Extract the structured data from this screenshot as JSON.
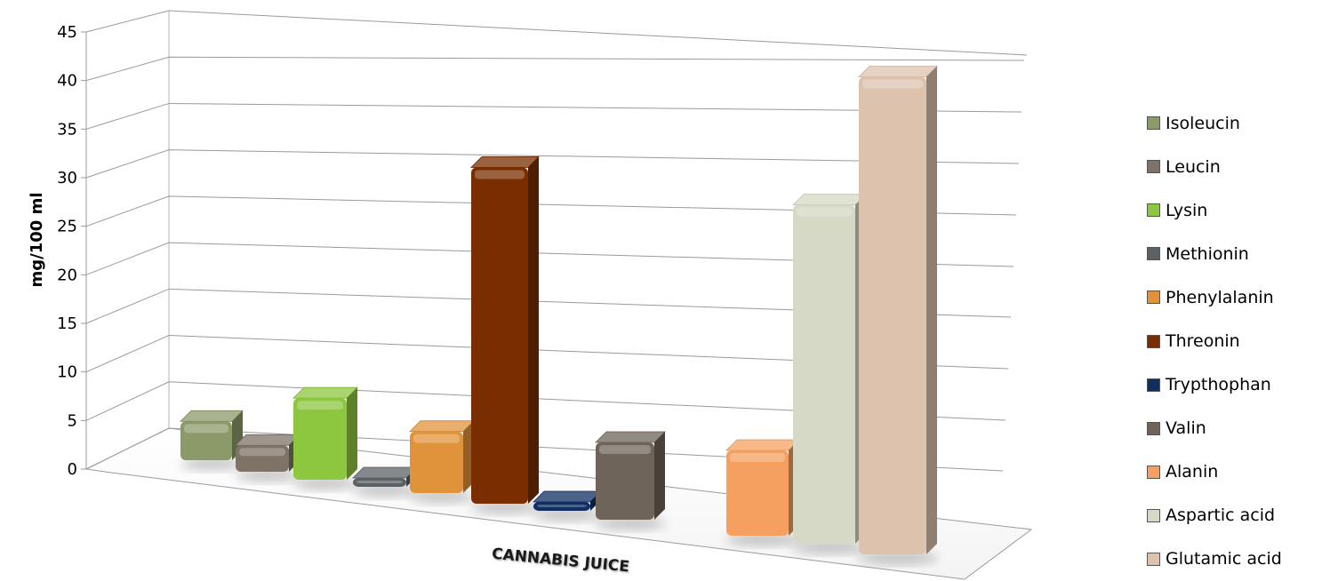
{
  "chart_data": {
    "type": "bar",
    "title": "",
    "xlabel": "",
    "ylabel": "mg/100 ml",
    "ylim": [
      0,
      45
    ],
    "yticks": [
      0,
      5,
      10,
      15,
      20,
      25,
      30,
      35,
      40,
      45
    ],
    "categories": [
      "CANNABIS JUICE"
    ],
    "grid": true,
    "legend_position": "right",
    "series": [
      {
        "name": "Isoleucin",
        "values": [
          4.2
        ],
        "color": "#8C9A6A"
      },
      {
        "name": "Leucin",
        "values": [
          2.8
        ],
        "color": "#7E7366"
      },
      {
        "name": "Lysin",
        "values": [
          8.5
        ],
        "color": "#8DC63F"
      },
      {
        "name": "Methionin",
        "values": [
          0.4
        ],
        "color": "#5C6166"
      },
      {
        "name": "Phenylalanin",
        "values": [
          6.3
        ],
        "color": "#E0933A"
      },
      {
        "name": "Threonin",
        "values": [
          33.5
        ],
        "color": "#7A2E00"
      },
      {
        "name": "Trypthophan",
        "values": [
          0.6
        ],
        "color": "#0F2E63"
      },
      {
        "name": "Valin",
        "values": [
          7.5
        ],
        "color": "#6E6459"
      },
      {
        "name": "Alanin",
        "values": [
          8.0
        ],
        "color": "#F5A060"
      },
      {
        "name": "Aspartic acid",
        "values": [
          31.0
        ],
        "color": "#D5D9C5"
      },
      {
        "name": "Glutamic acid",
        "values": [
          43.0
        ],
        "color": "#DDC2AE"
      }
    ]
  }
}
